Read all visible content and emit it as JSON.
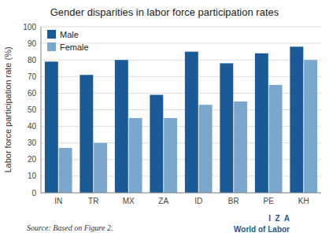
{
  "chart_data": {
    "type": "bar",
    "title": "Gender disparities in labor force participation rates",
    "categories": [
      "IN",
      "TR",
      "MX",
      "ZA",
      "ID",
      "BR",
      "PE",
      "KH"
    ],
    "series": [
      {
        "name": "Male",
        "color": "#1a5a96",
        "values": [
          79,
          71,
          80,
          59,
          85,
          78,
          84,
          88
        ]
      },
      {
        "name": "Female",
        "color": "#7ba7cc",
        "values": [
          27,
          30,
          45,
          45,
          53,
          55,
          65,
          80
        ]
      }
    ],
    "y_label": "Labor force participation rate (%)",
    "ylim": [
      0,
      100
    ],
    "yticks": [
      0,
      10,
      20,
      30,
      40,
      50,
      60,
      70,
      80,
      90,
      100
    ],
    "grid": true,
    "legend": "upper left",
    "annotations": [
      "Source: Based on Figure 2.",
      "I  Z  A",
      "World of Labor"
    ]
  }
}
